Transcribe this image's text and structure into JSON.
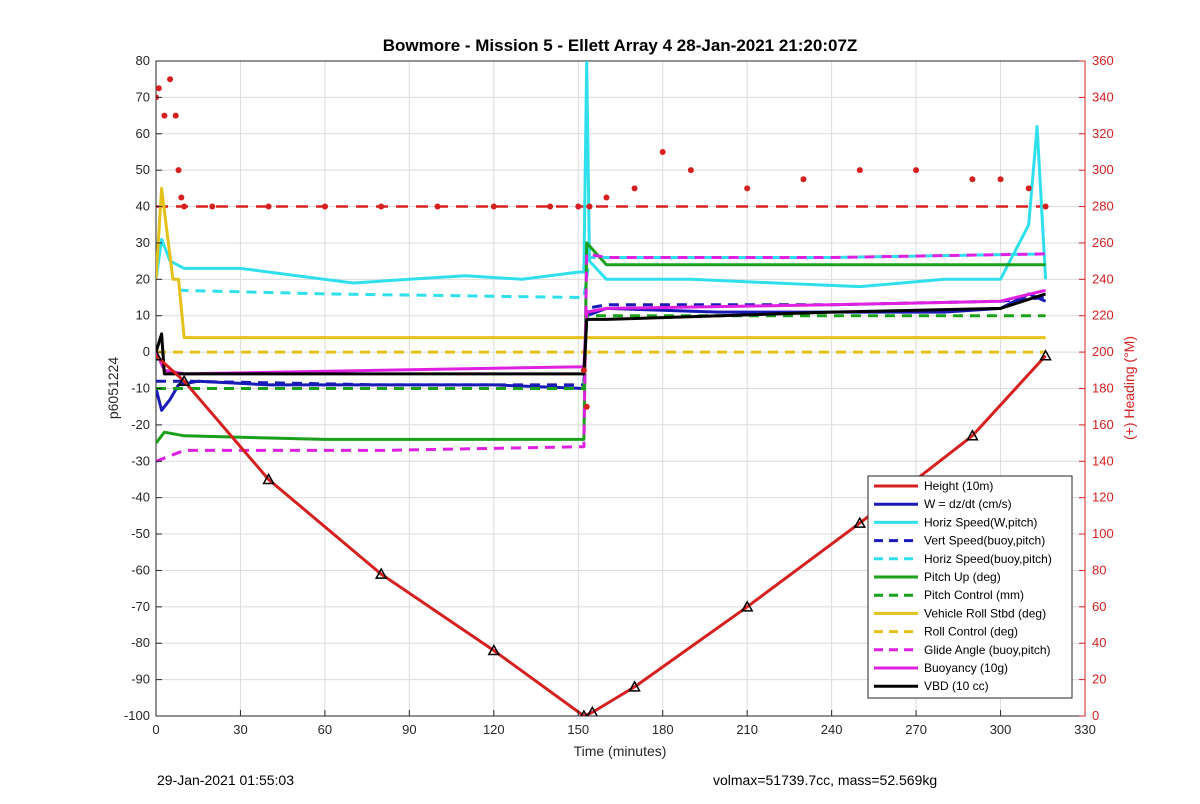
{
  "footer": {
    "left": "29-Jan-2021 01:55:03",
    "right": "volmax=51739.7cc, mass=52.569kg"
  },
  "chart_data": {
    "type": "line",
    "title": "Bowmore - Mission 5 - Ellett Array 4 28-Jan-2021 21:20:07Z",
    "xlabel": "Time (minutes)",
    "ylabel": "p6051224",
    "y2label": "(+) Heading (°M)",
    "xlim": [
      0,
      330
    ],
    "ylim": [
      -100,
      80
    ],
    "y2lim": [
      0,
      360
    ],
    "xticks": [
      0,
      30,
      60,
      90,
      120,
      150,
      180,
      210,
      240,
      270,
      300,
      330
    ],
    "yticks": [
      -100,
      -90,
      -80,
      -70,
      -60,
      -50,
      -40,
      -30,
      -20,
      -10,
      0,
      10,
      20,
      30,
      40,
      50,
      60,
      70,
      80
    ],
    "y2ticks": [
      0,
      20,
      40,
      60,
      80,
      100,
      120,
      140,
      160,
      180,
      200,
      220,
      240,
      260,
      280,
      300,
      320,
      340,
      360
    ],
    "grid": true,
    "legend_position": "bottom-right",
    "colors": {
      "red": "#d62020",
      "blue": "#1a1ab8",
      "cyan": "#2fe0ec",
      "green": "#1aa01a",
      "yellow": "#e5c21a",
      "magenta": "#e020e0",
      "black": "#000000",
      "right_axis": "#d62020"
    },
    "series": [
      {
        "name": "Height (10m)",
        "color": "#d62020",
        "dash": false,
        "x": [
          0,
          10,
          40,
          80,
          120,
          152,
          155,
          170,
          210,
          250,
          290,
          316
        ],
        "y": [
          -1,
          -8,
          -35,
          -61,
          -82,
          -100,
          -99,
          -92,
          -70,
          -47,
          -23,
          -1
        ]
      },
      {
        "name": "W = dz/dt (cm/s)",
        "color": "#1a1ab8",
        "dash": false,
        "x": [
          0,
          2,
          5,
          8,
          15,
          40,
          80,
          120,
          152,
          153,
          160,
          200,
          240,
          280,
          300,
          310,
          316
        ],
        "y": [
          -10,
          -16,
          -13,
          -9,
          -8,
          -9,
          -9,
          -9,
          -10,
          10,
          12,
          11,
          11,
          11,
          12,
          16,
          14
        ]
      },
      {
        "name": "Horiz Speed(W,pitch)",
        "color": "#2fe0ec",
        "dash": false,
        "x": [
          0,
          2,
          5,
          10,
          20,
          30,
          50,
          70,
          90,
          110,
          130,
          150,
          152,
          153,
          154,
          160,
          190,
          220,
          250,
          280,
          300,
          310,
          313,
          316
        ],
        "y": [
          20,
          31,
          25,
          23,
          23,
          23,
          21,
          19,
          20,
          21,
          20,
          22,
          22,
          80,
          25,
          20,
          20,
          19,
          18,
          20,
          20,
          35,
          62,
          20
        ]
      },
      {
        "name": "Vert Speed(buoy,pitch)",
        "color": "#1a1ab8",
        "dash": true,
        "x": [
          0,
          10,
          80,
          152,
          153,
          160,
          240,
          300,
          316
        ],
        "y": [
          -8,
          -8,
          -9,
          -9,
          12,
          13,
          13,
          14,
          15
        ]
      },
      {
        "name": "Horiz Speed(buoy,pitch)",
        "color": "#2fe0ec",
        "dash": true,
        "x": [
          8,
          60,
          152,
          154,
          240,
          316
        ],
        "y": [
          17,
          16,
          15,
          26,
          26,
          27
        ]
      },
      {
        "name": "Pitch Up (deg)",
        "color": "#1aa01a",
        "dash": false,
        "x": [
          0,
          3,
          10,
          60,
          120,
          152,
          153,
          160,
          220,
          260,
          300,
          316
        ],
        "y": [
          -25,
          -22,
          -23,
          -24,
          -24,
          -24,
          30,
          24,
          24,
          24,
          24,
          24
        ]
      },
      {
        "name": "Pitch Control (mm)",
        "color": "#1aa01a",
        "dash": true,
        "x": [
          0,
          5,
          80,
          152,
          153,
          160,
          240,
          316
        ],
        "y": [
          -10,
          -10,
          -10,
          -10,
          10,
          10,
          10,
          10
        ]
      },
      {
        "name": "Vehicle Roll Stbd (deg)",
        "color": "#e5c21a",
        "dash": false,
        "x": [
          0,
          2,
          6,
          8,
          10,
          152,
          160,
          316
        ],
        "y": [
          20,
          45,
          20,
          20,
          4,
          4,
          4,
          4
        ]
      },
      {
        "name": "Roll Control (deg)",
        "color": "#e5c21a",
        "dash": true,
        "x": [
          0,
          10,
          152,
          160,
          316
        ],
        "y": [
          0,
          0,
          0,
          0,
          0
        ]
      },
      {
        "name": "Glide Angle (buoy,pitch)",
        "color": "#e020e0",
        "dash": true,
        "x": [
          0,
          10,
          80,
          152,
          153,
          160,
          240,
          316
        ],
        "y": [
          -30,
          -27,
          -27,
          -26,
          27,
          26,
          26,
          27
        ]
      },
      {
        "name": "Buoyancy (10g)",
        "color": "#e020e0",
        "dash": false,
        "x": [
          0,
          3,
          10,
          80,
          152,
          153,
          160,
          240,
          300,
          316
        ],
        "y": [
          0,
          -5,
          -6,
          -5,
          -4,
          11,
          12,
          13,
          14,
          17
        ]
      },
      {
        "name": "VBD (10 cc)",
        "color": "#000000",
        "dash": false,
        "x": [
          0,
          2,
          3,
          10,
          80,
          152,
          153,
          160,
          240,
          300,
          316
        ],
        "y": [
          0,
          5,
          -6,
          -6,
          -6,
          -6,
          9,
          9,
          11,
          12,
          16
        ]
      }
    ],
    "heading_series": {
      "axis": "right",
      "color": "#d62020",
      "marker": "dot",
      "x": [
        0,
        1,
        3,
        5,
        7,
        8,
        9,
        10,
        20,
        40,
        60,
        80,
        100,
        120,
        140,
        150,
        152,
        153,
        154,
        160,
        170,
        180,
        190,
        210,
        230,
        250,
        270,
        290,
        300,
        310,
        316
      ],
      "y": [
        340,
        345,
        330,
        350,
        330,
        300,
        285,
        280,
        280,
        280,
        280,
        280,
        280,
        280,
        280,
        280,
        190,
        170,
        280,
        285,
        290,
        310,
        300,
        290,
        295,
        300,
        300,
        295,
        295,
        290,
        280
      ],
      "reference_line": {
        "y": 280,
        "dash": true
      }
    }
  }
}
